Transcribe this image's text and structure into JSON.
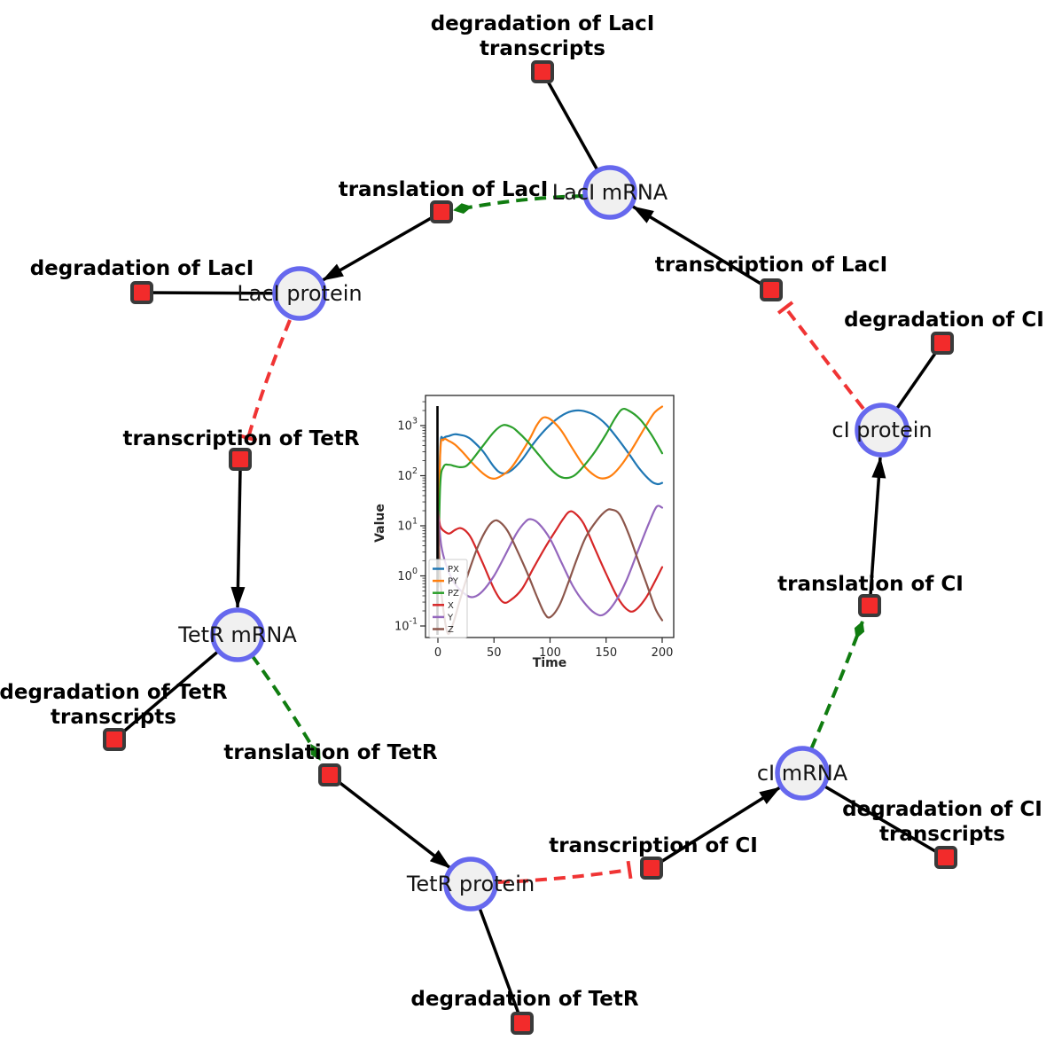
{
  "diagram": {
    "species": [
      {
        "id": "laci-mrna",
        "label": "LacI mRNA"
      },
      {
        "id": "laci-protein",
        "label": "LacI protein"
      },
      {
        "id": "tetr-mrna",
        "label": "TetR mRNA"
      },
      {
        "id": "tetr-protein",
        "label": "TetR protein"
      },
      {
        "id": "ci-mrna",
        "label": "cI mRNA"
      },
      {
        "id": "ci-protein",
        "label": "cI protein"
      }
    ],
    "reactions": [
      {
        "id": "deg-laci-transcripts",
        "label": "degradation of LacI",
        "label2": "transcripts"
      },
      {
        "id": "translation-laci",
        "label": "translation of LacI"
      },
      {
        "id": "transcription-laci",
        "label": "transcription of LacI"
      },
      {
        "id": "deg-laci",
        "label": "degradation of LacI"
      },
      {
        "id": "deg-ci",
        "label": "degradation of CI"
      },
      {
        "id": "transcription-tetr",
        "label": "transcription of TetR"
      },
      {
        "id": "deg-tetr-transcripts",
        "label": "degradation of TetR",
        "label2": "transcripts"
      },
      {
        "id": "translation-tetr",
        "label": "translation of TetR"
      },
      {
        "id": "deg-tetr",
        "label": "degradation of TetR"
      },
      {
        "id": "transcription-ci",
        "label": "transcription of CI"
      },
      {
        "id": "deg-ci-transcripts",
        "label": "degradation of CI",
        "label2": "transcripts"
      },
      {
        "id": "translation-ci",
        "label": "translation of CI"
      }
    ],
    "edges": [
      {
        "source": "LacI mRNA",
        "target": "degradation of LacI transcripts",
        "type": "consumption"
      },
      {
        "source": "LacI mRNA",
        "target": "translation of LacI",
        "type": "modifier"
      },
      {
        "source": "transcription of LacI",
        "target": "LacI mRNA",
        "type": "production"
      },
      {
        "source": "cI protein",
        "target": "transcription of LacI",
        "type": "inhibition"
      },
      {
        "source": "translation of LacI",
        "target": "LacI protein",
        "type": "production"
      },
      {
        "source": "LacI protein",
        "target": "degradation of LacI",
        "type": "consumption"
      },
      {
        "source": "LacI protein",
        "target": "transcription of TetR",
        "type": "inhibition"
      },
      {
        "source": "transcription of TetR",
        "target": "TetR mRNA",
        "type": "production"
      },
      {
        "source": "TetR mRNA",
        "target": "degradation of TetR transcripts",
        "type": "consumption"
      },
      {
        "source": "TetR mRNA",
        "target": "translation of TetR",
        "type": "modifier"
      },
      {
        "source": "translation of TetR",
        "target": "TetR protein",
        "type": "production"
      },
      {
        "source": "TetR protein",
        "target": "degradation of TetR",
        "type": "consumption"
      },
      {
        "source": "TetR protein",
        "target": "transcription of CI",
        "type": "inhibition"
      },
      {
        "source": "transcription of CI",
        "target": "cI mRNA",
        "type": "production"
      },
      {
        "source": "cI mRNA",
        "target": "degradation of CI transcripts",
        "type": "consumption"
      },
      {
        "source": "cI mRNA",
        "target": "translation of CI",
        "type": "modifier"
      },
      {
        "source": "translation of CI",
        "target": "cI protein",
        "type": "production"
      },
      {
        "source": "cI protein",
        "target": "degradation of CI",
        "type": "consumption"
      }
    ],
    "colors": {
      "species_fill": "#f0f0f0",
      "species_border": "#6668ee",
      "reaction_fill": "#f22b2b",
      "reaction_border": "#3a3a3a",
      "production_edge": "#000000",
      "modifier_edge": "#107c10",
      "inhibition_edge": "#f03434"
    }
  },
  "chart_data": {
    "type": "line",
    "title": "",
    "xlabel": "Time",
    "ylabel": "Value",
    "yscale": "log",
    "xlim": [
      -11,
      212
    ],
    "ylim": [
      0.06,
      3500
    ],
    "x_ticks": [
      0,
      50,
      100,
      150,
      200
    ],
    "y_tick_exponents": [
      -1,
      0,
      1,
      2,
      3
    ],
    "grid": false,
    "legend_position": "lower left",
    "vertical_line_x": 0,
    "series": [
      {
        "name": "PX",
        "color": "#1f77b4",
        "points": [
          [
            0,
            0.6
          ],
          [
            2,
            300
          ],
          [
            5,
            550
          ],
          [
            10,
            620
          ],
          [
            15,
            670
          ],
          [
            20,
            650
          ],
          [
            25,
            610
          ],
          [
            30,
            520
          ],
          [
            40,
            310
          ],
          [
            50,
            150
          ],
          [
            57,
            112
          ],
          [
            65,
            125
          ],
          [
            75,
            210
          ],
          [
            85,
            430
          ],
          [
            95,
            800
          ],
          [
            105,
            1300
          ],
          [
            115,
            1800
          ],
          [
            123,
            2000
          ],
          [
            130,
            1950
          ],
          [
            140,
            1600
          ],
          [
            150,
            1050
          ],
          [
            160,
            560
          ],
          [
            170,
            280
          ],
          [
            180,
            135
          ],
          [
            190,
            78
          ],
          [
            196,
            68
          ],
          [
            200,
            72
          ]
        ]
      },
      {
        "name": "PY",
        "color": "#ff7f0e",
        "points": [
          [
            0,
            0.6
          ],
          [
            2,
            250
          ],
          [
            5,
            520
          ],
          [
            10,
            490
          ],
          [
            15,
            420
          ],
          [
            20,
            330
          ],
          [
            25,
            250
          ],
          [
            30,
            185
          ],
          [
            40,
            112
          ],
          [
            48,
            88
          ],
          [
            55,
            95
          ],
          [
            65,
            140
          ],
          [
            75,
            300
          ],
          [
            82,
            550
          ],
          [
            88,
            1000
          ],
          [
            93,
            1400
          ],
          [
            97,
            1450
          ],
          [
            102,
            1250
          ],
          [
            110,
            800
          ],
          [
            120,
            350
          ],
          [
            130,
            160
          ],
          [
            140,
            100
          ],
          [
            147,
            88
          ],
          [
            155,
            102
          ],
          [
            165,
            180
          ],
          [
            175,
            400
          ],
          [
            185,
            950
          ],
          [
            193,
            1800
          ],
          [
            200,
            2400
          ]
        ]
      },
      {
        "name": "PZ",
        "color": "#2ca02c",
        "points": [
          [
            0,
            0.6
          ],
          [
            2,
            60
          ],
          [
            5,
            150
          ],
          [
            10,
            165
          ],
          [
            15,
            155
          ],
          [
            20,
            148
          ],
          [
            25,
            155
          ],
          [
            30,
            200
          ],
          [
            40,
            390
          ],
          [
            50,
            750
          ],
          [
            58,
            1020
          ],
          [
            65,
            950
          ],
          [
            70,
            800
          ],
          [
            80,
            480
          ],
          [
            90,
            260
          ],
          [
            100,
            140
          ],
          [
            108,
            98
          ],
          [
            115,
            90
          ],
          [
            122,
            102
          ],
          [
            130,
            155
          ],
          [
            140,
            300
          ],
          [
            150,
            680
          ],
          [
            158,
            1400
          ],
          [
            164,
            2100
          ],
          [
            170,
            2000
          ],
          [
            180,
            1350
          ],
          [
            190,
            680
          ],
          [
            200,
            280
          ]
        ]
      },
      {
        "name": "X",
        "color": "#d62728",
        "points": [
          [
            0,
            20
          ],
          [
            2,
            10
          ],
          [
            5,
            8
          ],
          [
            10,
            7
          ],
          [
            15,
            8.2
          ],
          [
            20,
            9
          ],
          [
            25,
            7.8
          ],
          [
            30,
            5.5
          ],
          [
            40,
            1.8
          ],
          [
            50,
            0.55
          ],
          [
            58,
            0.3
          ],
          [
            65,
            0.33
          ],
          [
            75,
            0.55
          ],
          [
            85,
            1.4
          ],
          [
            95,
            3.5
          ],
          [
            105,
            8
          ],
          [
            112,
            14
          ],
          [
            117,
            19
          ],
          [
            122,
            18
          ],
          [
            130,
            11
          ],
          [
            140,
            3.5
          ],
          [
            150,
            1.1
          ],
          [
            160,
            0.38
          ],
          [
            168,
            0.22
          ],
          [
            175,
            0.2
          ],
          [
            185,
            0.35
          ],
          [
            195,
            0.9
          ],
          [
            200,
            1.5
          ]
        ]
      },
      {
        "name": "Y",
        "color": "#9467bd",
        "points": [
          [
            0,
            20
          ],
          [
            3,
            4
          ],
          [
            8,
            1.5
          ],
          [
            15,
            0.7
          ],
          [
            25,
            0.42
          ],
          [
            32,
            0.38
          ],
          [
            40,
            0.5
          ],
          [
            50,
            1
          ],
          [
            60,
            2.6
          ],
          [
            70,
            7
          ],
          [
            78,
            12
          ],
          [
            83,
            13.5
          ],
          [
            90,
            11
          ],
          [
            100,
            5.5
          ],
          [
            110,
            1.9
          ],
          [
            120,
            0.65
          ],
          [
            130,
            0.3
          ],
          [
            140,
            0.18
          ],
          [
            148,
            0.17
          ],
          [
            158,
            0.3
          ],
          [
            168,
            0.8
          ],
          [
            178,
            3
          ],
          [
            188,
            11
          ],
          [
            195,
            24
          ],
          [
            200,
            23
          ]
        ]
      },
      {
        "name": "Z",
        "color": "#8c564b",
        "points": [
          [
            0,
            20
          ],
          [
            2,
            1
          ],
          [
            5,
            0.2
          ],
          [
            9,
            0.07
          ],
          [
            14,
            0.12
          ],
          [
            20,
            0.35
          ],
          [
            28,
            1.3
          ],
          [
            36,
            4
          ],
          [
            44,
            9
          ],
          [
            50,
            12.5
          ],
          [
            55,
            12
          ],
          [
            62,
            8
          ],
          [
            70,
            3.5
          ],
          [
            80,
            1.1
          ],
          [
            88,
            0.4
          ],
          [
            95,
            0.18
          ],
          [
            100,
            0.15
          ],
          [
            108,
            0.25
          ],
          [
            116,
            0.7
          ],
          [
            124,
            2.2
          ],
          [
            132,
            6
          ],
          [
            142,
            13
          ],
          [
            150,
            20
          ],
          [
            155,
            21
          ],
          [
            162,
            17
          ],
          [
            170,
            7
          ],
          [
            178,
            2.2
          ],
          [
            186,
            0.7
          ],
          [
            194,
            0.22
          ],
          [
            200,
            0.13
          ]
        ]
      }
    ]
  }
}
